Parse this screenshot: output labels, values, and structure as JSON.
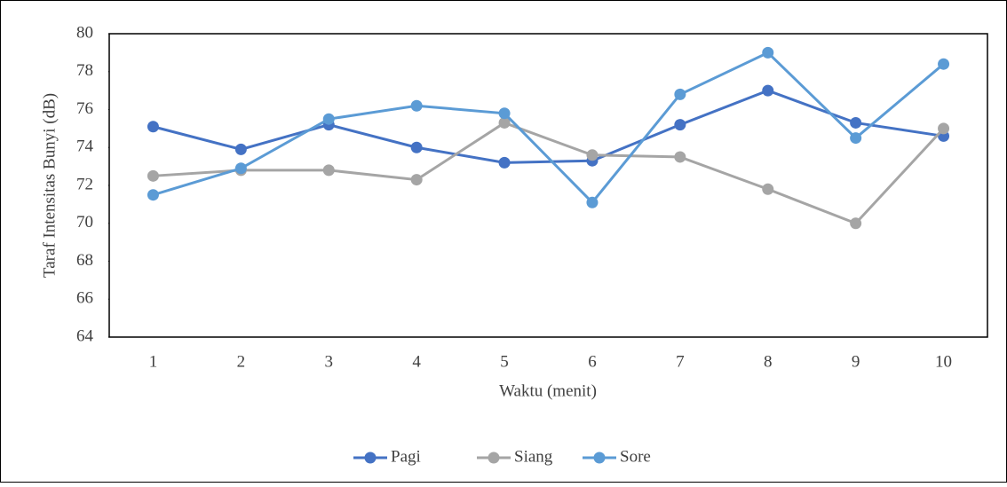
{
  "chart_data": {
    "type": "line",
    "x_label": "Waktu (menit)",
    "y_label": "Taraf Intensitas Bunyi (dB)",
    "categories": [
      "1",
      "2",
      "3",
      "4",
      "5",
      "6",
      "7",
      "8",
      "9",
      "10"
    ],
    "series": [
      {
        "name": "Pagi",
        "color": "#4472c4",
        "values": [
          75.1,
          73.9,
          75.2,
          74.0,
          73.2,
          73.3,
          75.2,
          77.0,
          75.3,
          74.6
        ]
      },
      {
        "name": "Siang",
        "color": "#a5a5a5",
        "values": [
          72.5,
          72.8,
          72.8,
          72.3,
          75.3,
          73.6,
          73.5,
          71.8,
          70.0,
          75.0
        ]
      },
      {
        "name": "Sore",
        "color": "#5b9bd5",
        "values": [
          71.5,
          72.9,
          75.5,
          76.2,
          75.8,
          71.1,
          76.8,
          79.0,
          74.5,
          78.4
        ]
      }
    ],
    "ylim": [
      64,
      80
    ],
    "yticks": [
      64,
      66,
      68,
      70,
      72,
      74,
      76,
      78,
      80
    ],
    "legend": "bottom"
  }
}
